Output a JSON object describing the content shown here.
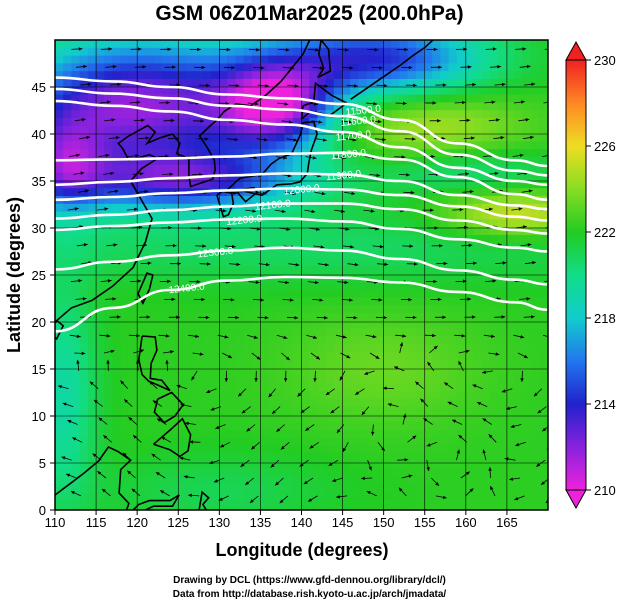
{
  "title": "GSM 06Z01Mar2025 (200.0hPa)",
  "xlabel": "Longitude (degrees)",
  "ylabel": "Latitude  (degrees)",
  "credit_line1": "Drawing by DCL (https://www.gfd-dennou.org/library/dcl/)",
  "credit_line2": "Data from http://database.rish.kyoto-u.ac.jp/arch/jmadata/",
  "chart_data": {
    "type": "heatmap",
    "title": "GSM 06Z01Mar2025 (200.0hPa)",
    "xlabel": "Longitude (degrees)",
    "ylabel": "Latitude  (degrees)",
    "xlim": [
      110,
      170
    ],
    "ylim": [
      0,
      50
    ],
    "xticks": [
      110,
      115,
      120,
      125,
      130,
      135,
      140,
      145,
      150,
      155,
      160,
      165
    ],
    "yticks": [
      0,
      5,
      10,
      15,
      20,
      25,
      30,
      35,
      40,
      45
    ],
    "colorbar": {
      "range": [
        210,
        230
      ],
      "ticks": [
        "210",
        "214",
        "218",
        "222",
        "226",
        "230"
      ],
      "stops": [
        {
          "value": 210,
          "color": "#ee22dd"
        },
        {
          "value": 212,
          "color": "#8822dd"
        },
        {
          "value": 214,
          "color": "#2222cc"
        },
        {
          "value": 216,
          "color": "#2277ee"
        },
        {
          "value": 218,
          "color": "#11cccc"
        },
        {
          "value": 220,
          "color": "#11dd88"
        },
        {
          "value": 222,
          "color": "#22cc22"
        },
        {
          "value": 224,
          "color": "#88dd22"
        },
        {
          "value": 226,
          "color": "#eedd22"
        },
        {
          "value": 228,
          "color": "#ff8822"
        },
        {
          "value": 230,
          "color": "#ee2222"
        }
      ]
    },
    "contours": [
      {
        "label": "11500.0",
        "lats": [
          46,
          45.6,
          45,
          44.2,
          43.8,
          43.2,
          41.5,
          39,
          37.2,
          36.6
        ]
      },
      {
        "label": "11600.0",
        "lats": [
          44.8,
          44.3,
          43.8,
          43,
          42.6,
          41.9,
          40.3,
          37.8,
          36.1,
          35.6
        ]
      },
      {
        "label": "11700.0",
        "lats": [
          43.5,
          43,
          42.4,
          41.5,
          41,
          40.2,
          38.6,
          36.4,
          35,
          34.6
        ]
      },
      {
        "label": "11800.0",
        "lats": [
          37.2,
          37.3,
          37.4,
          37.6,
          37.9,
          38,
          37.3,
          35.4,
          33.6,
          33
        ]
      },
      {
        "label": "11900.0",
        "lats": [
          34.6,
          34.9,
          35.3,
          35.6,
          35.8,
          35.7,
          35,
          33.5,
          32.4,
          32
        ]
      },
      {
        "label": "12000.0",
        "lats": [
          33,
          33.3,
          33.7,
          34,
          34.2,
          34.1,
          33.5,
          32.3,
          31.2,
          30.8
        ]
      },
      {
        "label": "12100.0",
        "lats": [
          31,
          31.4,
          31.9,
          32.3,
          32.6,
          32.6,
          32,
          30.8,
          29.8,
          29.4
        ]
      },
      {
        "label": "12200.0",
        "lats": [
          29.8,
          30.2,
          30.6,
          30.9,
          31,
          30.7,
          29.9,
          28.8,
          27.9,
          27.5
        ]
      },
      {
        "label": "12300.0",
        "lats": [
          25.6,
          26.4,
          27.1,
          27.6,
          27.9,
          27.6,
          26.7,
          25.5,
          24.5,
          24
        ]
      },
      {
        "label": "12400.0",
        "lats": [
          19,
          21.5,
          23.4,
          24.4,
          24.8,
          24.7,
          24.2,
          23.2,
          22.1,
          21.3
        ]
      }
    ],
    "contour_lons": [
      110,
      117,
      124,
      131,
      138,
      145,
      152,
      159,
      166,
      170
    ],
    "contour_labels_shown": [
      "11500.0",
      "11600.0",
      "11700.0",
      "11800.0",
      "11900.0",
      "12000.0",
      "12100.0",
      "12200.0",
      "12300.0",
      "12400.0"
    ],
    "vortex_centers": [
      [
        151.5,
        9.5
      ],
      [
        158.5,
        5.5
      ]
    ]
  },
  "colors": {
    "background": "#ffffff",
    "contour": "#ffffff",
    "streamline": "#000000",
    "coast": "#000000"
  }
}
